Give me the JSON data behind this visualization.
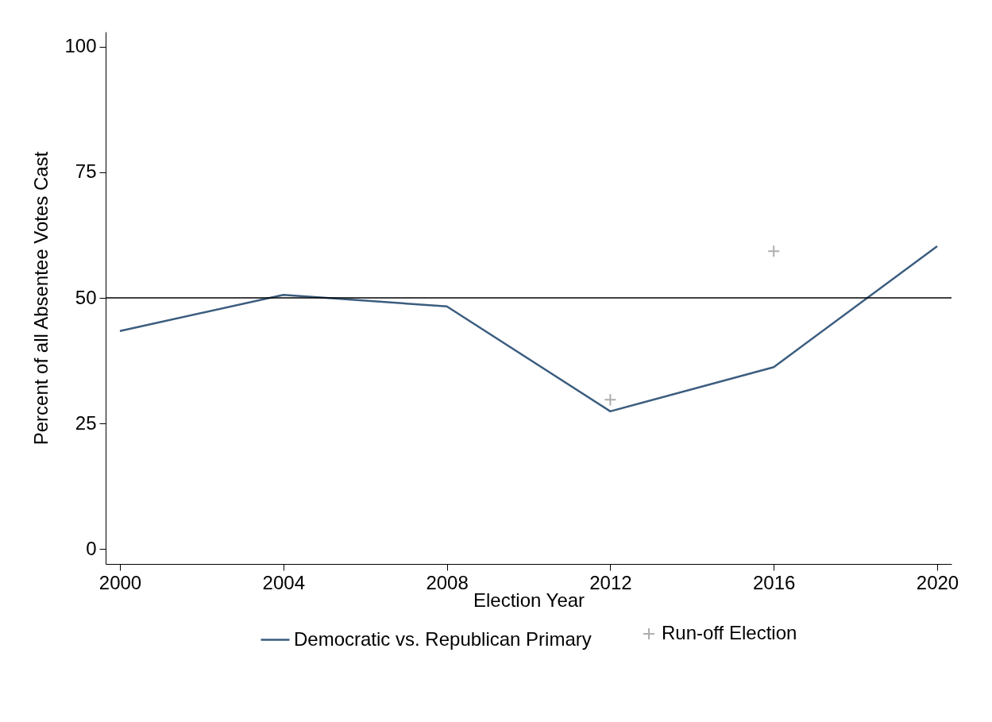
{
  "chart_data": {
    "type": "line",
    "xlabel": "Election Year",
    "ylabel": "Percent of all Absentee Votes Cast",
    "x": [
      2000,
      2004,
      2008,
      2012,
      2016,
      2020
    ],
    "xlim": [
      1999.65,
      2020.35
    ],
    "xticks": [
      2000,
      2004,
      2008,
      2012,
      2016,
      2020
    ],
    "ylim": [
      -3,
      103
    ],
    "yticks": [
      0,
      25,
      50,
      75,
      100
    ],
    "grid": false,
    "legend": "bottom",
    "series": [
      {
        "name": "Democratic vs. Republican Primary",
        "color": "#3b5d7f",
        "values": [
          43.4,
          50.6,
          48.3,
          27.4,
          36.2,
          60.3
        ]
      },
      {
        "name": "Run-off Election",
        "type": "scatter",
        "marker": "cross",
        "color": "#8c8c8c",
        "x": [
          2012,
          2016
        ],
        "values": [
          29.7,
          59.3
        ]
      }
    ],
    "ref_lines": [
      {
        "axis": "y",
        "value": 50,
        "color": "#000000"
      }
    ]
  }
}
